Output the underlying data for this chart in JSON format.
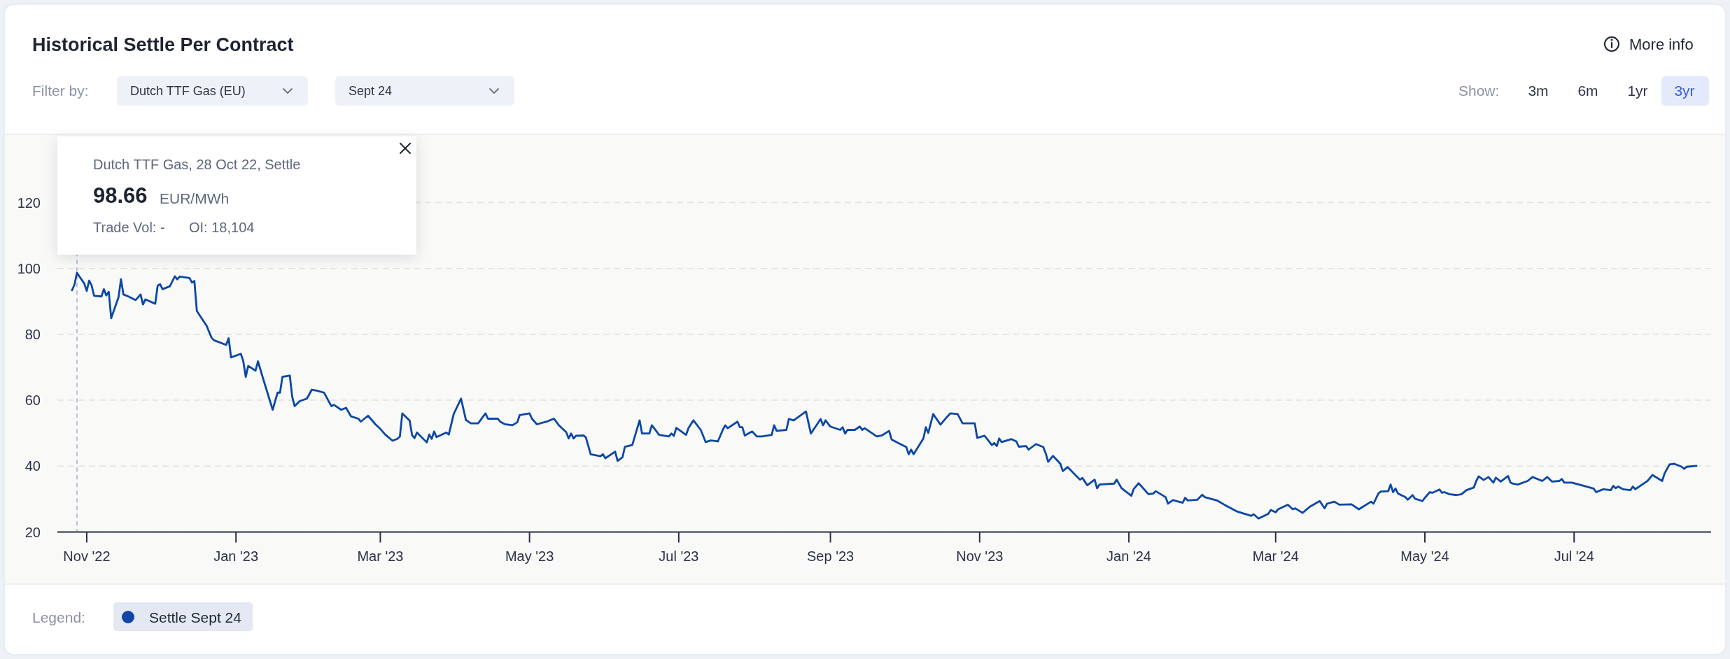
{
  "chart_data": {
    "type": "line",
    "title": "Historical Settle Per Contract",
    "legend_title": "Legend:",
    "annotations": [
      "Dutch TTF Gas, 28 Oct 22, Settle",
      "98.66",
      "EUR/MWh",
      "Trade Vol: -",
      "OI: 18,104",
      "More info",
      "Filter by:",
      "Dutch TTF Gas (EU)",
      "Sept 24",
      "Show:",
      "3m",
      "6m",
      "1yr",
      "3yr"
    ],
    "x": [
      "2022-10-26",
      "2022-10-27",
      "2022-10-28",
      "2022-10-31",
      "2022-11-01",
      "2022-11-02",
      "2022-11-03",
      "2022-11-04",
      "2022-11-07",
      "2022-11-08",
      "2022-11-09",
      "2022-11-10",
      "2022-11-11",
      "2022-11-14",
      "2022-11-15",
      "2022-11-16",
      "2022-11-18",
      "2022-11-21",
      "2022-11-23",
      "2022-11-24",
      "2022-11-25",
      "2022-11-29",
      "2022-11-30",
      "2022-12-01",
      "2022-12-02",
      "2022-12-05",
      "2022-12-07",
      "2022-12-08",
      "2022-12-09",
      "2022-12-13",
      "2022-12-14",
      "2022-12-15",
      "2022-12-16",
      "2022-12-20",
      "2022-12-22",
      "2022-12-23",
      "2022-12-28",
      "2022-12-29",
      "2022-12-30",
      "2023-01-03",
      "2023-01-04",
      "2023-01-05",
      "2023-01-06",
      "2023-01-09",
      "2023-01-10",
      "2023-01-12",
      "2023-01-16",
      "2023-01-18",
      "2023-01-19",
      "2023-01-20",
      "2023-01-23",
      "2023-01-24",
      "2023-01-25",
      "2023-01-27",
      "2023-01-30",
      "2023-02-01",
      "2023-02-03",
      "2023-02-06",
      "2023-02-09",
      "2023-02-10",
      "2023-02-13",
      "2023-02-15",
      "2023-02-17",
      "2023-02-20",
      "2023-02-21",
      "2023-02-24",
      "2023-02-27",
      "2023-03-01",
      "2023-03-03",
      "2023-03-06",
      "2023-03-08",
      "2023-03-09",
      "2023-03-10",
      "2023-03-13",
      "2023-03-14",
      "2023-03-15",
      "2023-03-16",
      "2023-03-20",
      "2023-03-21",
      "2023-03-22",
      "2023-03-23",
      "2023-03-24",
      "2023-03-28",
      "2023-03-29",
      "2023-03-31",
      "2023-04-03",
      "2023-04-05",
      "2023-04-07",
      "2023-04-10",
      "2023-04-13",
      "2023-04-14",
      "2023-04-18",
      "2023-04-19",
      "2023-04-21",
      "2023-04-24",
      "2023-04-26",
      "2023-04-27",
      "2023-05-01",
      "2023-05-02",
      "2023-05-04",
      "2023-05-08",
      "2023-05-10",
      "2023-05-11",
      "2023-05-13",
      "2023-05-16",
      "2023-05-17",
      "2023-05-18",
      "2023-05-19",
      "2023-05-20",
      "2023-05-23",
      "2023-05-24",
      "2023-05-26",
      "2023-05-30",
      "2023-05-31",
      "2023-06-01",
      "2023-06-05",
      "2023-06-06",
      "2023-06-08",
      "2023-06-09",
      "2023-06-12",
      "2023-06-15",
      "2023-06-16",
      "2023-06-19",
      "2023-06-20",
      "2023-06-23",
      "2023-06-27",
      "2023-06-28",
      "2023-06-29",
      "2023-06-30",
      "2023-07-04",
      "2023-07-05",
      "2023-07-07",
      "2023-07-10",
      "2023-07-12",
      "2023-07-14",
      "2023-07-17",
      "2023-07-19",
      "2023-07-20",
      "2023-07-21",
      "2023-07-25",
      "2023-07-26",
      "2023-07-27",
      "2023-07-28",
      "2023-07-31",
      "2023-08-02",
      "2023-08-04",
      "2023-08-08",
      "2023-08-09",
      "2023-08-10",
      "2023-08-14",
      "2023-08-15",
      "2023-08-17",
      "2023-08-22",
      "2023-08-24",
      "2023-08-28",
      "2023-08-29",
      "2023-08-30",
      "2023-09-01",
      "2023-09-05",
      "2023-09-06",
      "2023-09-07",
      "2023-09-08",
      "2023-09-11",
      "2023-09-13",
      "2023-09-14",
      "2023-09-15",
      "2023-09-19",
      "2023-09-20",
      "2023-09-22",
      "2023-09-25",
      "2023-09-26",
      "2023-09-29",
      "2023-10-02",
      "2023-10-03",
      "2023-10-04",
      "2023-10-05",
      "2023-10-09",
      "2023-10-10",
      "2023-10-11",
      "2023-10-13",
      "2023-10-16",
      "2023-10-19",
      "2023-10-20",
      "2023-10-23",
      "2023-10-25",
      "2023-10-30",
      "2023-10-31",
      "2023-11-03",
      "2023-11-06",
      "2023-11-07",
      "2023-11-08",
      "2023-11-09",
      "2023-11-10",
      "2023-11-14",
      "2023-11-16",
      "2023-11-17",
      "2023-11-20",
      "2023-11-21",
      "2023-11-24",
      "2023-11-27",
      "2023-11-28",
      "2023-11-29",
      "2023-12-01",
      "2023-12-04",
      "2023-12-05",
      "2023-12-07",
      "2023-12-12",
      "2023-12-13",
      "2023-12-15",
      "2023-12-18",
      "2023-12-19",
      "2023-12-20",
      "2023-12-26",
      "2023-12-27",
      "2023-12-29",
      "2024-01-02",
      "2024-01-03",
      "2024-01-05",
      "2024-01-09",
      "2024-01-11",
      "2024-01-12",
      "2024-01-16",
      "2024-01-17",
      "2024-01-19",
      "2024-01-23",
      "2024-01-24",
      "2024-01-25",
      "2024-01-29",
      "2024-01-31",
      "2024-02-01",
      "2024-02-06",
      "2024-02-09",
      "2024-02-14",
      "2024-02-20",
      "2024-02-21",
      "2024-02-23",
      "2024-02-27",
      "2024-02-28",
      "2024-03-01",
      "2024-03-02",
      "2024-03-06",
      "2024-03-08",
      "2024-03-09",
      "2024-03-12",
      "2024-03-15",
      "2024-03-19",
      "2024-03-21",
      "2024-03-22",
      "2024-03-25",
      "2024-03-27",
      "2024-04-01",
      "2024-04-04",
      "2024-04-09",
      "2024-04-10",
      "2024-04-12",
      "2024-04-13",
      "2024-04-16",
      "2024-04-17",
      "2024-04-18",
      "2024-04-19",
      "2024-04-20",
      "2024-04-23",
      "2024-04-24",
      "2024-04-26",
      "2024-04-27",
      "2024-04-30",
      "2024-05-01",
      "2024-05-03",
      "2024-05-04",
      "2024-05-07",
      "2024-05-08",
      "2024-05-09",
      "2024-05-11",
      "2024-05-14",
      "2024-05-16",
      "2024-05-18",
      "2024-05-21",
      "2024-05-22",
      "2024-05-23",
      "2024-05-25",
      "2024-05-27",
      "2024-05-29",
      "2024-05-30",
      "2024-06-01",
      "2024-06-04",
      "2024-06-05",
      "2024-06-06",
      "2024-06-08",
      "2024-06-12",
      "2024-06-14",
      "2024-06-18",
      "2024-06-20",
      "2024-06-22",
      "2024-06-25",
      "2024-06-26",
      "2024-06-27",
      "2024-06-30",
      "2024-07-03",
      "2024-07-09",
      "2024-07-10",
      "2024-07-13",
      "2024-07-16",
      "2024-07-17",
      "2024-07-18",
      "2024-07-19",
      "2024-07-21",
      "2024-07-24",
      "2024-07-25",
      "2024-07-26",
      "2024-07-30",
      "2024-07-31",
      "2024-08-02",
      "2024-08-06",
      "2024-08-07",
      "2024-08-09",
      "2024-08-11",
      "2024-08-14",
      "2024-08-15",
      "2024-08-16",
      "2024-08-20"
    ],
    "series": [
      {
        "name": "Settle Sept 24",
        "color": "#0c47a6",
        "values": [
          93.4,
          95.1,
          98.66,
          95.4,
          93.2,
          96.3,
          94.8,
          91.7,
          91.5,
          93.7,
          91.8,
          92.9,
          84.9,
          91.3,
          96.7,
          92.1,
          91.5,
          90.4,
          92.1,
          89.1,
          90.6,
          89.3,
          94.8,
          95.2,
          93.7,
          94.6,
          97.6,
          96.7,
          97.5,
          97.1,
          95.7,
          96.2,
          87.1,
          82.6,
          79.0,
          78.2,
          76.8,
          78.8,
          73.0,
          74.1,
          71.8,
          67.1,
          70.4,
          69.0,
          71.8,
          66.8,
          57.1,
          62.3,
          62.3,
          67.1,
          67.5,
          61.0,
          58.2,
          59.7,
          60.5,
          63.2,
          62.9,
          62.3,
          58.2,
          58.6,
          57.1,
          57.7,
          55.1,
          54.4,
          53.5,
          55.3,
          52.7,
          51.3,
          49.6,
          47.7,
          48.3,
          49.0,
          56.0,
          53.8,
          49.4,
          48.5,
          50.2,
          47.2,
          49.6,
          48.3,
          50.5,
          48.8,
          50.2,
          49.6,
          55.8,
          60.5,
          54.0,
          53.0,
          53.0,
          56.0,
          54.4,
          54.4,
          53.5,
          52.7,
          52.4,
          53.3,
          55.5,
          56.0,
          54.4,
          52.7,
          53.5,
          54.1,
          54.4,
          52.4,
          50.3,
          48.4,
          49.9,
          48.4,
          49.2,
          49.3,
          48.8,
          43.6,
          43.0,
          43.6,
          42.4,
          44.4,
          41.6,
          42.7,
          45.9,
          46.4,
          53.9,
          49.9,
          49.9,
          52.4,
          49.5,
          49.0,
          49.9,
          49.2,
          51.6,
          49.5,
          51.6,
          53.9,
          51.0,
          47.3,
          47.8,
          47.5,
          51.0,
          52.4,
          51.5,
          53.5,
          51.8,
          51.8,
          49.3,
          50.5,
          49.0,
          49.0,
          49.5,
          52.4,
          50.7,
          51.0,
          54.3,
          53.9,
          56.6,
          49.9,
          54.3,
          52.4,
          53.9,
          52.0,
          51.0,
          51.8,
          49.9,
          51.0,
          51.0,
          52.0,
          51.0,
          51.5,
          49.5,
          49.0,
          49.3,
          50.7,
          48.1,
          46.9,
          45.8,
          43.6,
          45.0,
          43.6,
          48.4,
          51.8,
          50.1,
          55.8,
          52.6,
          55.2,
          56.0,
          55.8,
          53.0,
          53.0,
          48.6,
          49.2,
          46.4,
          47.0,
          46.1,
          48.4,
          47.3,
          48.2,
          47.5,
          45.9,
          46.1,
          45.0,
          46.7,
          45.8,
          43.9,
          41.3,
          43.1,
          40.7,
          38.5,
          39.7,
          35.9,
          36.4,
          34.2,
          35.9,
          33.3,
          34.4,
          34.7,
          35.9,
          33.3,
          31.0,
          33.1,
          34.8,
          31.5,
          31.7,
          32.4,
          30.6,
          28.6,
          29.7,
          28.9,
          30.4,
          29.6,
          29.8,
          31.3,
          30.6,
          29.6,
          28.3,
          26.3,
          24.9,
          25.4,
          24.1,
          25.5,
          26.7,
          26.0,
          26.9,
          28.3,
          26.9,
          27.2,
          25.8,
          27.7,
          29.4,
          27.2,
          28.6,
          29.2,
          28.3,
          28.4,
          26.9,
          29.2,
          28.6,
          31.7,
          32.3,
          32.4,
          34.4,
          32.1,
          33.2,
          31.7,
          30.6,
          29.8,
          31.2,
          30.1,
          29.4,
          30.4,
          32.1,
          31.9,
          32.9,
          31.9,
          32.1,
          31.5,
          31.2,
          31.5,
          32.7,
          33.5,
          35.5,
          36.9,
          35.8,
          36.7,
          35.0,
          36.5,
          35.3,
          37.0,
          35.0,
          34.7,
          34.4,
          35.5,
          36.7,
          35.5,
          36.7,
          35.3,
          35.5,
          36.1,
          35.0,
          35.0,
          34.4,
          33.2,
          32.1,
          33.0,
          32.7,
          34.0,
          33.3,
          33.8,
          33.0,
          32.7,
          33.8,
          33.0,
          35.0,
          35.5,
          37.3,
          35.5,
          37.8,
          40.5,
          40.7,
          39.8,
          39.2,
          39.8,
          40.1
        ]
      }
    ],
    "xlim": [
      "2022-10-20",
      "2024-08-26"
    ],
    "xticks": [
      {
        "value": "2022-11-01",
        "label": "Nov '22"
      },
      {
        "value": "2023-01-01",
        "label": "Jan '23"
      },
      {
        "value": "2023-03-01",
        "label": "Mar '23"
      },
      {
        "value": "2023-05-01",
        "label": "May '23"
      },
      {
        "value": "2023-07-01",
        "label": "Jul '23"
      },
      {
        "value": "2023-09-01",
        "label": "Sep '23"
      },
      {
        "value": "2023-11-01",
        "label": "Nov '23"
      },
      {
        "value": "2024-01-01",
        "label": "Jan '24"
      },
      {
        "value": "2024-03-01",
        "label": "Mar '24"
      },
      {
        "value": "2024-05-01",
        "label": "May '24"
      },
      {
        "value": "2024-07-01",
        "label": "Jul '24"
      }
    ],
    "ylim": [
      20,
      140
    ],
    "yticks": [
      20,
      40,
      60,
      80,
      100,
      120
    ],
    "grid": "y",
    "legend": "bottom left",
    "ref_lines": [
      {
        "axis": "x",
        "value": "2022-10-28",
        "color": "#a7afc8",
        "line_style": "dashed"
      }
    ]
  }
}
